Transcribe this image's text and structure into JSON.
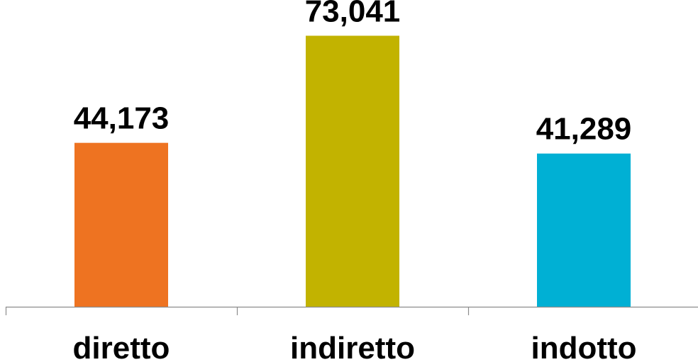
{
  "chart_data": {
    "type": "bar",
    "categories": [
      "diretto",
      "indiretto",
      "indotto"
    ],
    "values": [
      44173,
      73041,
      41289
    ],
    "value_labels": [
      "44,173",
      "73,041",
      "41,289"
    ],
    "colors": [
      "#EE7321",
      "#C2B300",
      "#00B0D4"
    ],
    "title": "",
    "xlabel": "",
    "ylabel": "",
    "ylim": [
      0,
      80000
    ],
    "grid": false,
    "legend": "none"
  }
}
